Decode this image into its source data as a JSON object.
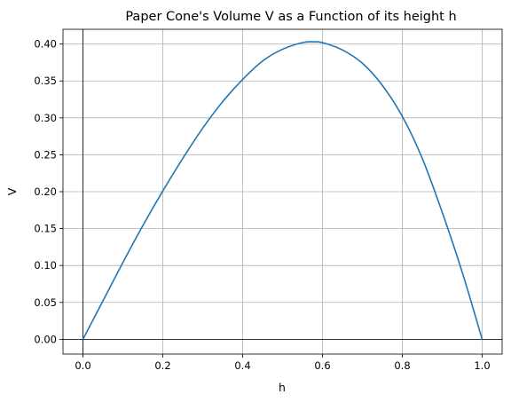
{
  "chart_data": {
    "type": "line",
    "title": "Paper Cone's Volume V as a Function of its height h",
    "xlabel": "h",
    "ylabel": "V",
    "xlim": [
      -0.05,
      1.05
    ],
    "ylim": [
      -0.02,
      0.42
    ],
    "xticks": [
      0.0,
      0.2,
      0.4,
      0.6,
      0.8,
      1.0
    ],
    "xtick_labels": [
      "0.0",
      "0.2",
      "0.4",
      "0.6",
      "0.8",
      "1.0"
    ],
    "yticks": [
      0.0,
      0.05,
      0.1,
      0.15,
      0.2,
      0.25,
      0.3,
      0.35,
      0.4
    ],
    "ytick_labels": [
      "0.00",
      "0.05",
      "0.10",
      "0.15",
      "0.20",
      "0.25",
      "0.30",
      "0.35",
      "0.40"
    ],
    "grid": true,
    "reference_lines": {
      "x": 0,
      "y": 0
    },
    "series": [
      {
        "color": "#1f77b4",
        "x": [
          0.0,
          0.05,
          0.1,
          0.15,
          0.2,
          0.25,
          0.3,
          0.35,
          0.4,
          0.45,
          0.5,
          0.55,
          0.577,
          0.6,
          0.65,
          0.7,
          0.75,
          0.8,
          0.85,
          0.9,
          0.95,
          1.0
        ],
        "y": [
          0.0,
          0.052,
          0.104,
          0.154,
          0.201,
          0.245,
          0.286,
          0.322,
          0.352,
          0.377,
          0.393,
          0.402,
          0.403,
          0.402,
          0.392,
          0.374,
          0.344,
          0.302,
          0.245,
          0.172,
          0.091,
          0.0
        ]
      }
    ]
  }
}
